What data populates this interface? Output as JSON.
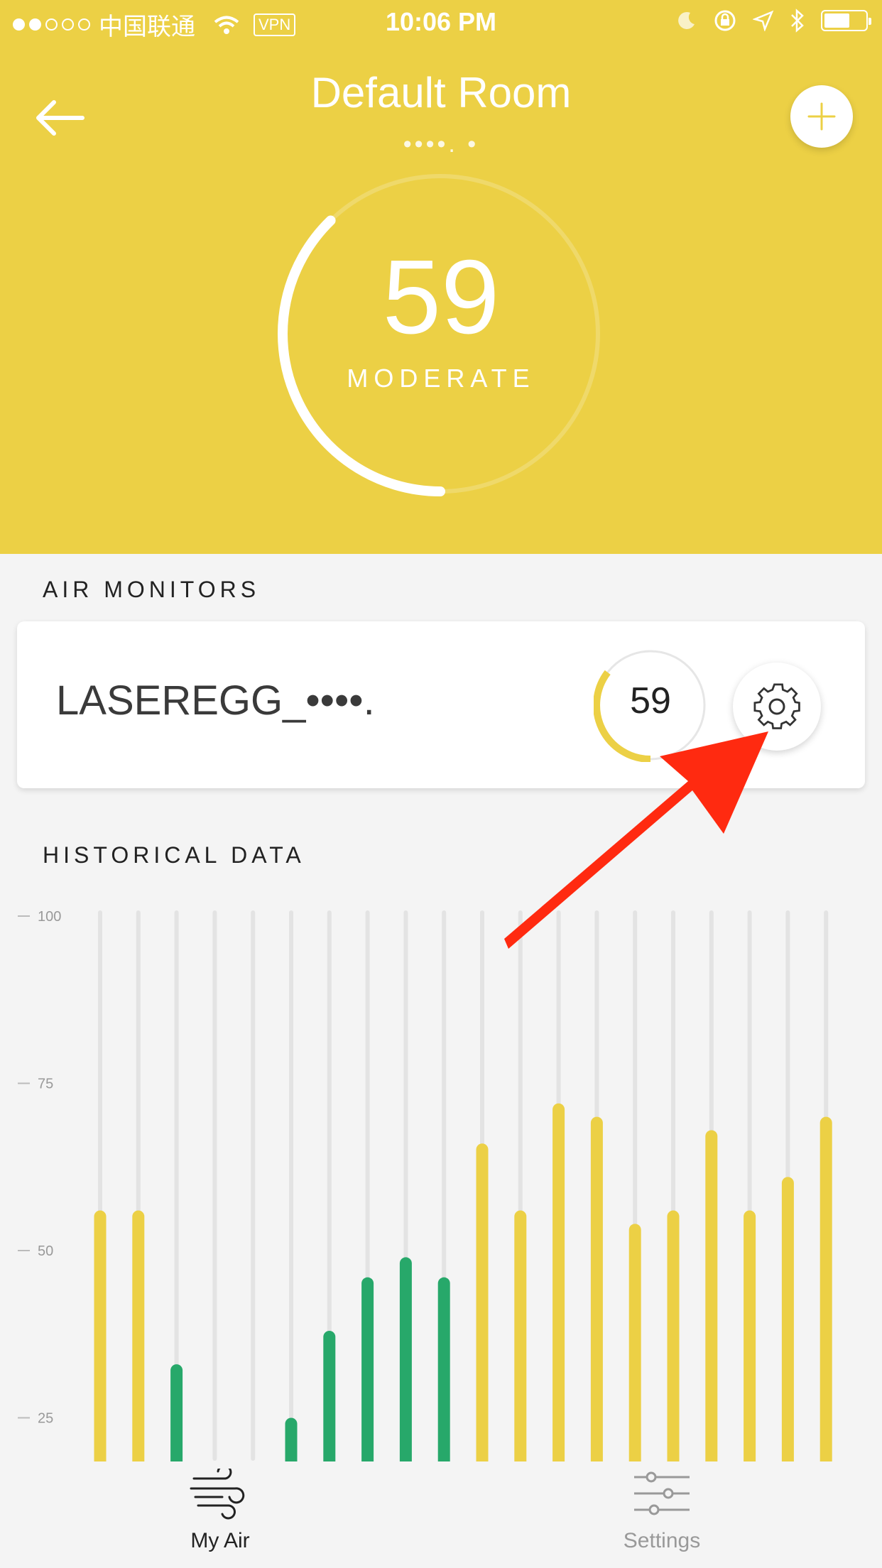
{
  "status_bar": {
    "carrier": "中国联通",
    "vpn": "VPN",
    "time": "10:06 PM"
  },
  "header": {
    "title": "Default Room",
    "subtitle": "••••. •"
  },
  "gauge": {
    "value": "59",
    "category": "MODERATE",
    "fraction": 0.59,
    "color": "#ecd045"
  },
  "air_monitors": {
    "heading": "AIR MONITORS",
    "device": {
      "name": "LASEREGG_••••.",
      "value": "59",
      "fraction": 0.59
    }
  },
  "historical": {
    "heading": "HISTORICAL DATA"
  },
  "chart_data": {
    "type": "bar",
    "title": "",
    "xlabel": "",
    "ylabel": "",
    "ylim": [
      17,
      100
    ],
    "yticks": [
      100,
      75,
      50,
      25
    ],
    "values": [
      56,
      56,
      33,
      null,
      null,
      25,
      38,
      46,
      49,
      46,
      66,
      56,
      72,
      70,
      54,
      56,
      68,
      56,
      61,
      70
    ],
    "colors": {
      "good": "#27a86a",
      "moderate": "#ecd045",
      "track": "#e3e3e3"
    }
  },
  "tabbar": {
    "my_air": "My Air",
    "settings": "Settings"
  }
}
